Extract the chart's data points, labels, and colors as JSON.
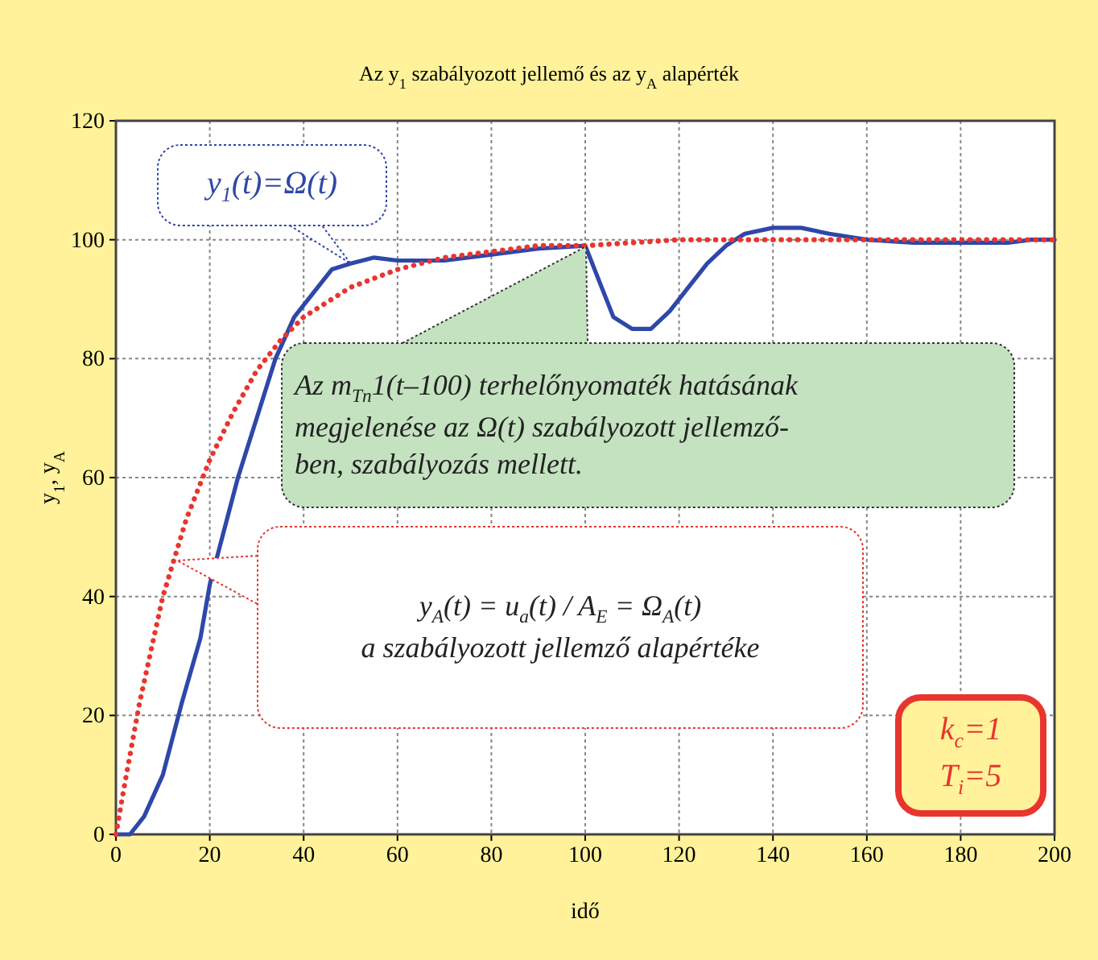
{
  "chart_data": {
    "type": "line",
    "title": "Az y$_{1}$ szabályozott jellemő és az  y$_{A}$ alapérték",
    "xlabel": "idő",
    "ylabel": "y$_{1}$, y$_{A}$",
    "xlim": [
      0,
      200
    ],
    "xticks": [
      0,
      20,
      40,
      60,
      80,
      100,
      120,
      140,
      160,
      180,
      200
    ],
    "ylim": [
      0,
      120
    ],
    "yticks": [
      0,
      20,
      40,
      60,
      80,
      100,
      120
    ],
    "grid": true,
    "marker": "none",
    "series": [
      {
        "color": "#2e47a8",
        "line_style": "solid",
        "x": [
          0,
          3,
          6,
          10,
          14,
          18,
          20,
          22,
          26,
          30,
          34,
          38,
          42,
          46,
          50,
          55,
          60,
          70,
          80,
          90,
          100,
          103,
          106,
          110,
          114,
          118,
          122,
          126,
          130,
          134,
          140,
          146,
          152,
          160,
          170,
          180,
          190,
          195,
          200
        ],
        "values": [
          0,
          0,
          3,
          10,
          22,
          33,
          42,
          48,
          60,
          70,
          80,
          87,
          91,
          95,
          96,
          97,
          96.5,
          96.5,
          97.5,
          98.5,
          99,
          93,
          87,
          85,
          85,
          88,
          92,
          96,
          99,
          101,
          102,
          102,
          101,
          100,
          99.5,
          99.5,
          99.5,
          100,
          100
        ]
      },
      {
        "color": "#e8352e",
        "line_style": "dotted",
        "x": [
          0,
          2,
          5,
          10,
          15,
          20,
          25,
          30,
          35,
          40,
          50,
          60,
          70,
          80,
          90,
          100,
          120,
          140,
          160,
          180,
          200
        ],
        "values": [
          0,
          9,
          22,
          40,
          53,
          63,
          71,
          78,
          83,
          87,
          92,
          95,
          97,
          98,
          99,
          99,
          100,
          100,
          100,
          100,
          100
        ]
      }
    ],
    "annotations": [
      {
        "text": "y$_{1}$(t)=Ω(t)",
        "x": 50,
        "y": 96
      },
      "Az m$_{Tn}$1(t–100) terhelőnyomaték hatásának\nmegjelenése az Ω(t) szabályozott jellemző-\nben, szabályozás mellett.",
      "y$_{A}$(t) = u$_{a}$(t) / A$_{E}$ = Ω$_{A}$(t)\na szabályozott jellemző alapértéke",
      "k$_{c}$=1\nT$_{i}$=5"
    ]
  }
}
